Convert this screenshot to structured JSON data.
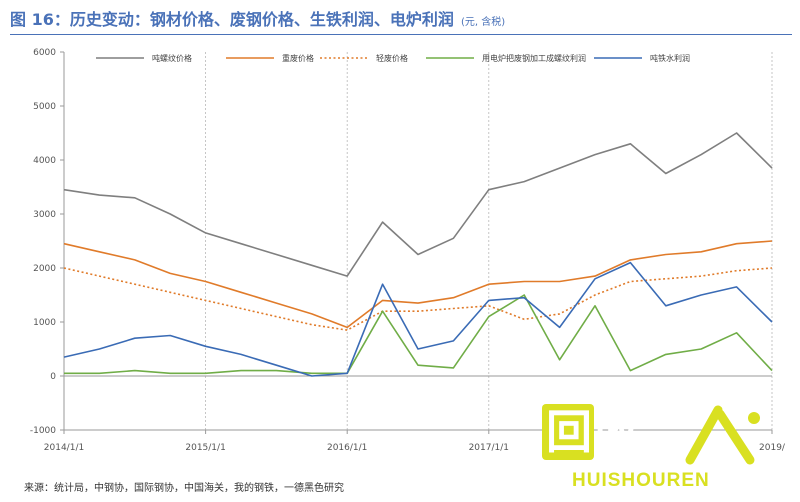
{
  "title": "图 16：历史变动：钢材价格、废钢价格、生铁利润、电炉利润",
  "title_unit": "(元, 含税)",
  "source": "来源：统计局，中钢协，国际钢协，中国海关，我的钢铁，一德黑色研究",
  "watermark": {
    "main": "回收",
    "latin": "HUISHOUREN",
    "color": "#d9e021"
  },
  "chart_data": {
    "type": "line",
    "title": "图 16：历史变动：钢材价格、废钢价格、生铁利润、电炉利润",
    "xlabel": "",
    "ylabel": "",
    "x": [
      "2014-01",
      "2014-04",
      "2014-07",
      "2014-10",
      "2015-01",
      "2015-04",
      "2015-07",
      "2015-10",
      "2016-01",
      "2016-04",
      "2016-07",
      "2016-10",
      "2017-01",
      "2017-04",
      "2017-07",
      "2017-10",
      "2018-01",
      "2018-04",
      "2018-07",
      "2018-10",
      "2019-01"
    ],
    "xticks": [
      "2014/1/1",
      "2015/1/1",
      "2016/1/1",
      "2017/1/1",
      "2019/"
    ],
    "xtick_index": [
      0,
      4,
      8,
      12,
      20
    ],
    "ylim": [
      -1000,
      6000
    ],
    "yticks": [
      -1000,
      0,
      1000,
      2000,
      3000,
      4000,
      5000,
      6000
    ],
    "grid": "vertical-dashed",
    "legend_position": "top",
    "series": [
      {
        "name": "吨螺纹价格",
        "color": "#7f7f7f",
        "style": "solid",
        "values": [
          3450,
          3350,
          3300,
          3000,
          2650,
          2450,
          2250,
          2050,
          1850,
          2850,
          2250,
          2550,
          3450,
          3600,
          3850,
          4100,
          4300,
          3750,
          4100,
          4500,
          3850
        ]
      },
      {
        "name": "重废价格",
        "color": "#e07b2a",
        "style": "solid",
        "values": [
          2450,
          2300,
          2150,
          1900,
          1750,
          1550,
          1350,
          1150,
          900,
          1400,
          1350,
          1450,
          1700,
          1750,
          1750,
          1850,
          2150,
          2250,
          2300,
          2450,
          2500
        ]
      },
      {
        "name": "轻废价格",
        "color": "#e07b2a",
        "style": "dotted",
        "values": [
          2000,
          1850,
          1700,
          1550,
          1400,
          1250,
          1100,
          950,
          850,
          1200,
          1200,
          1250,
          1300,
          1050,
          1150,
          1500,
          1750,
          1800,
          1850,
          1950,
          2000
        ]
      },
      {
        "name": "用电炉把废钢加工成螺纹利润",
        "color": "#70ad47",
        "style": "solid",
        "values": [
          50,
          50,
          100,
          50,
          50,
          100,
          100,
          50,
          50,
          1200,
          200,
          150,
          1100,
          1500,
          300,
          1300,
          100,
          400,
          500,
          800,
          100
        ]
      },
      {
        "name": "吨铁水利润",
        "color": "#3a6bb5",
        "style": "solid",
        "values": [
          350,
          500,
          700,
          750,
          550,
          400,
          200,
          0,
          50,
          1700,
          500,
          650,
          1400,
          1450,
          900,
          1800,
          2100,
          1300,
          1500,
          1650,
          1000
        ]
      }
    ]
  }
}
